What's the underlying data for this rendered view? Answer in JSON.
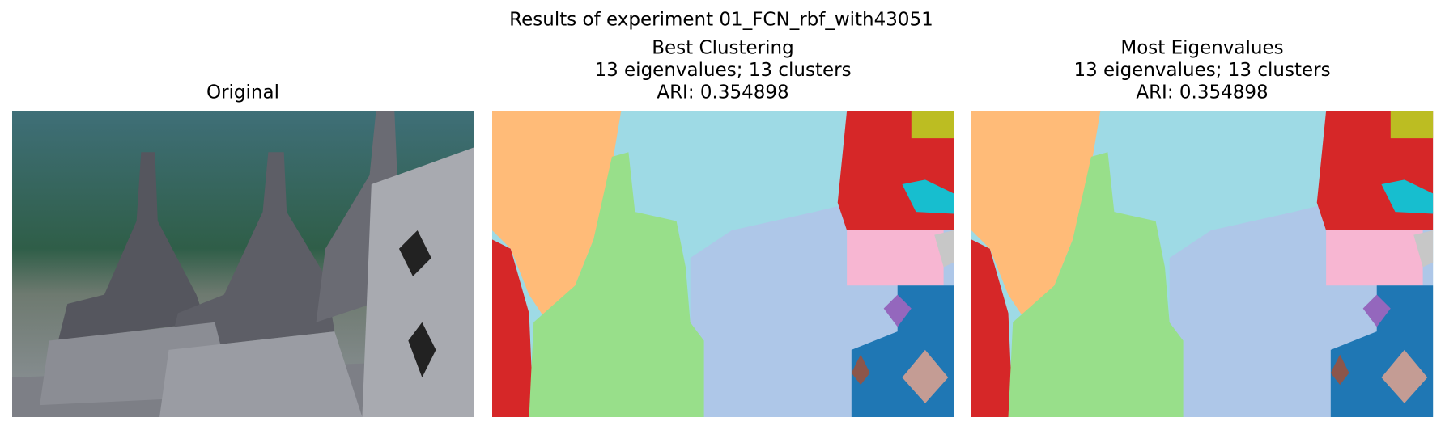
{
  "figure": {
    "title": "Results of experiment 01_FCN_rbf_with43051",
    "panels": [
      {
        "title_lines": [
          "Original"
        ]
      },
      {
        "title_lines": [
          "Best Clustering",
          "13 eigenvalues; 13 clusters",
          "ARI: 0.354898"
        ]
      },
      {
        "title_lines": [
          "Most Eigenvalues",
          "13 eigenvalues; 13 clusters",
          "ARI: 0.354898"
        ]
      }
    ]
  }
}
